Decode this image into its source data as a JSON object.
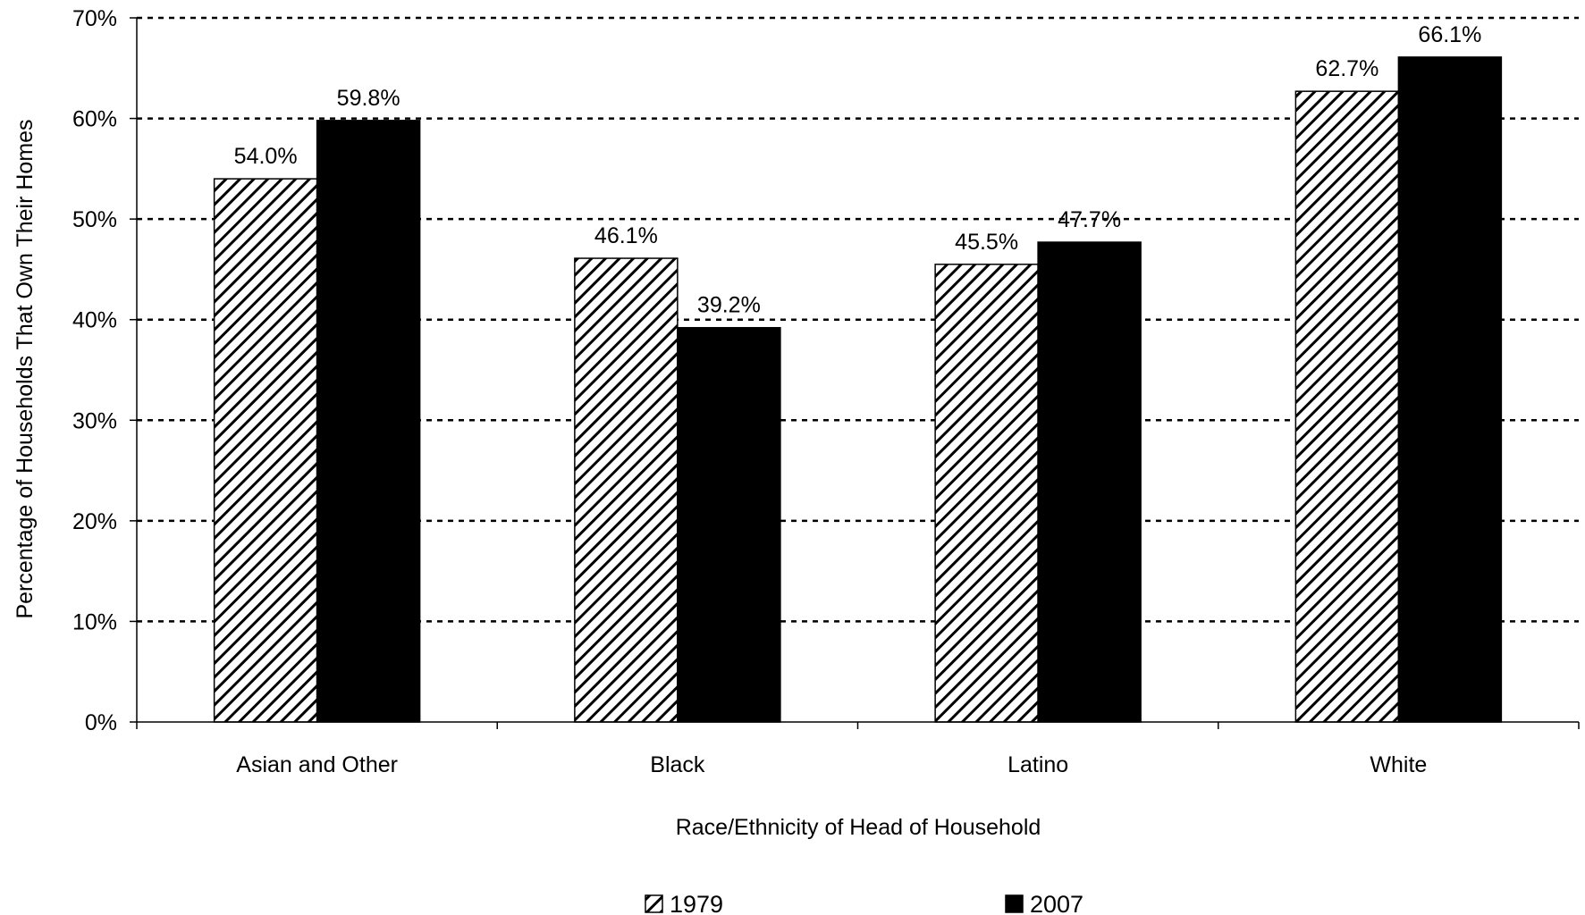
{
  "chart_data": {
    "type": "bar",
    "title": "",
    "xlabel": "Race/Ethnicity of Head of Household",
    "ylabel": "Percentage of Households That Own Their Homes",
    "ylim": [
      0,
      70
    ],
    "yticks": [
      0,
      10,
      20,
      30,
      40,
      50,
      60,
      70
    ],
    "ytick_labels": [
      "0%",
      "10%",
      "20%",
      "30%",
      "40%",
      "50%",
      "60%",
      "70%"
    ],
    "grid": true,
    "legend_position": "bottom",
    "categories": [
      "Asian and Other",
      "Black",
      "Latino",
      "White"
    ],
    "series": [
      {
        "name": "1979",
        "pattern": "diagonal-hatch",
        "color": "#000000",
        "values": [
          54.0,
          46.1,
          45.5,
          62.7
        ],
        "labels": [
          "54.0%",
          "46.1%",
          "45.5%",
          "62.7%"
        ]
      },
      {
        "name": "2007",
        "pattern": "solid",
        "color": "#000000",
        "values": [
          59.8,
          39.2,
          47.7,
          66.1
        ],
        "labels": [
          "59.8%",
          "39.2%",
          "47.7%",
          "66.1%"
        ]
      }
    ]
  }
}
